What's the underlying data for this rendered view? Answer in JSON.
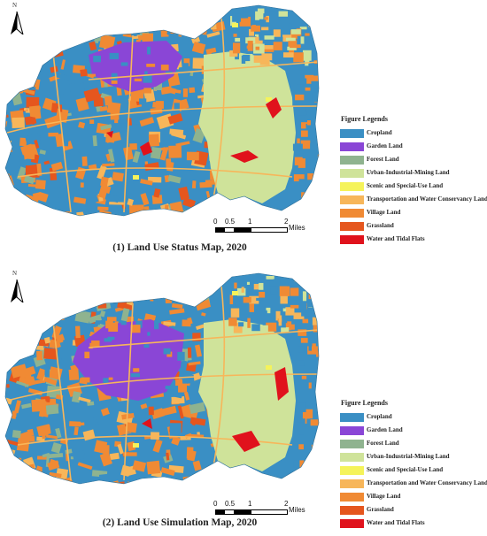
{
  "north_label": "N",
  "scale": {
    "ticks": [
      "0",
      "0.5",
      "1",
      "2"
    ],
    "unit": "Miles"
  },
  "legend": {
    "title": "Figure Legends",
    "items": [
      {
        "label": "Cropland",
        "color": "#3a8fc4"
      },
      {
        "label": "Garden Land",
        "color": "#8a46d6"
      },
      {
        "label": "Forest Land",
        "color": "#8fb38f"
      },
      {
        "label": "Urban-Industrial-Mining Land",
        "color": "#cfe39a"
      },
      {
        "label": "Scenic and Special-Use Land",
        "color": "#f5f35a"
      },
      {
        "label": "Transportation and Water Conservancy Land",
        "color": "#f7b65a"
      },
      {
        "label": "Village Land",
        "color": "#f08a34"
      },
      {
        "label": "Grassland",
        "color": "#e5561e"
      },
      {
        "label": "Water and Tidal Flats",
        "color": "#e0121c"
      }
    ]
  },
  "maps": [
    {
      "caption": "(1) Land Use Status Map, 2020"
    },
    {
      "caption": "(2) Land Use Simulation Map, 2020"
    }
  ]
}
